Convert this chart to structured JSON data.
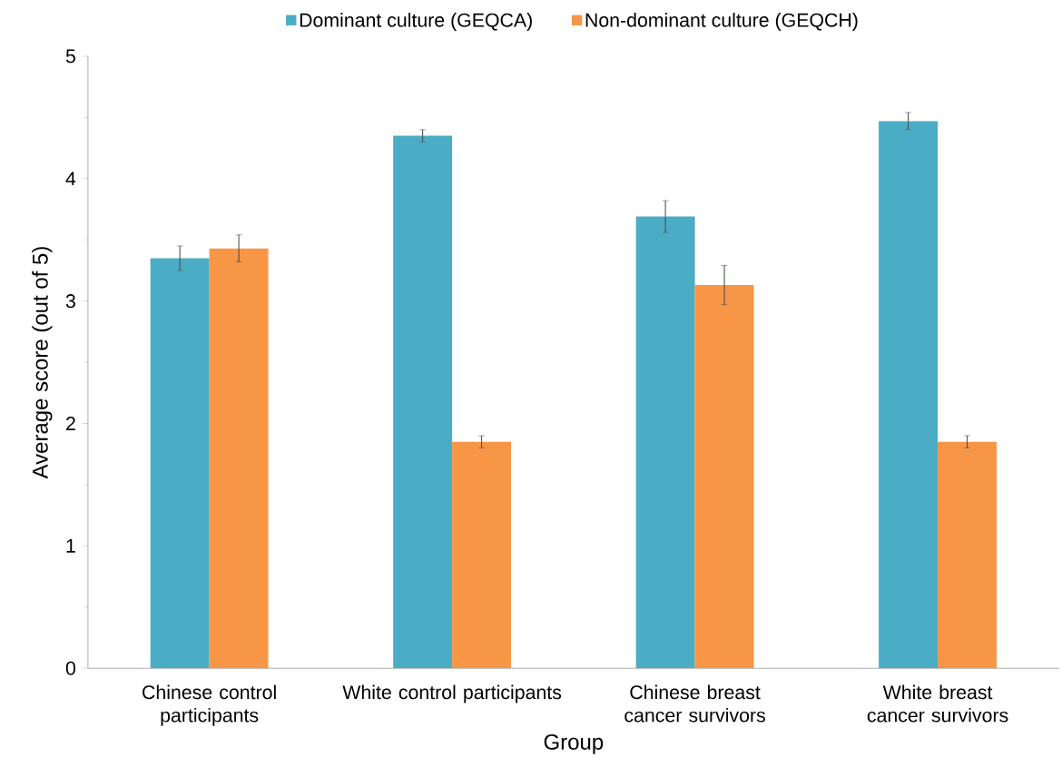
{
  "chart_data": {
    "type": "bar",
    "xlabel": "Group",
    "ylabel": "Average score (out of 5)",
    "categories": [
      "Chinese control participants",
      "White control participants",
      "Chinese breast cancer survivors",
      "White breast cancer survivors"
    ],
    "series": [
      {
        "name": "Dominant culture (GEQCA)",
        "color": "#4bacc6",
        "values": [
          3.35,
          4.35,
          3.69,
          4.47
        ],
        "errors": [
          0.1,
          0.05,
          0.13,
          0.07
        ]
      },
      {
        "name": "Non-dominant culture (GEQCH)",
        "color": "#f79646",
        "values": [
          3.43,
          1.85,
          3.13,
          1.85
        ],
        "errors": [
          0.11,
          0.05,
          0.16,
          0.05
        ]
      }
    ],
    "ylim": [
      0,
      5
    ],
    "yticks": [
      0,
      1,
      2,
      3,
      4,
      5
    ],
    "legend": "top"
  }
}
